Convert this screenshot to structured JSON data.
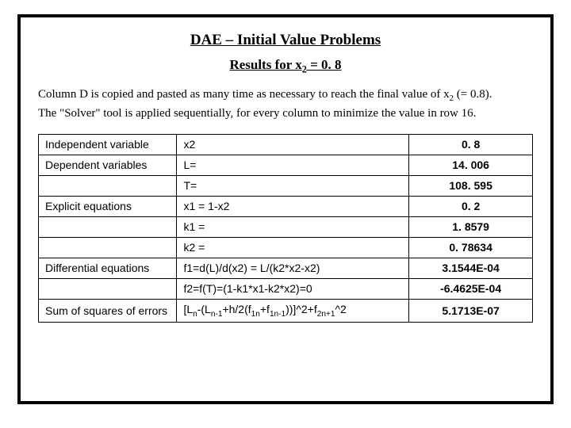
{
  "title": "DAE – Initial Value Problems",
  "subtitle_prefix": "Results for x",
  "subtitle_sub": "2",
  "subtitle_suffix": " = 0. 8",
  "paragraph": {
    "line1_pre": "Column D is copied and pasted as many time as necessary to reach the final value of x",
    "line1_sub": "2",
    "line1_post": " (= 0.8).",
    "line2": "The \"Solver\" tool is applied sequentially, for every column to minimize the value in row 16."
  },
  "rows": {
    "r0": {
      "label": "Independent variable",
      "mid": "x2",
      "val": "0. 8"
    },
    "r1": {
      "label": "Dependent variables",
      "mid": "L=",
      "val": "14. 006"
    },
    "r2": {
      "label": "",
      "mid": "T=",
      "val": "108. 595"
    },
    "r3": {
      "label": "Explicit equations",
      "mid": "x1 = 1-x2",
      "val": "0. 2"
    },
    "r4": {
      "label": "",
      "mid": "k1 =",
      "val": "1. 8579"
    },
    "r5": {
      "label": "",
      "mid": "k2 =",
      "val": "0. 78634"
    },
    "r6": {
      "label": "Differential equations",
      "mid": "f1=d(L)/d(x2) = L/(k2*x2-x2)",
      "val": "3.1544E-04"
    },
    "r7": {
      "label": "",
      "mid": "f2=f(T)=(1-k1*x1-k2*x2)=0",
      "val": "-6.4625E-04"
    },
    "r8": {
      "label": "Sum of squares of errors",
      "val": "5.1713E-07"
    }
  },
  "formula": {
    "p1": "[L",
    "s1": "n",
    "p2": "-(L",
    "s2": "n-1",
    "p3": "+h/2(f",
    "s3": "1n",
    "p4": "+f",
    "s4": "1n-1",
    "p5": "))]^2+f",
    "s5": "2n+1",
    "p6": "^2"
  },
  "colors": {
    "border": "#000000",
    "background": "#ffffff",
    "text": "#000000"
  }
}
